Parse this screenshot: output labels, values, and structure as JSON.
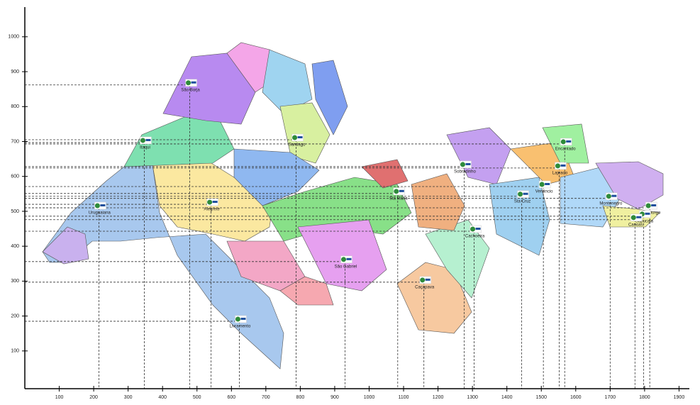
{
  "chart_data": {
    "type": "scatter",
    "xlim": [
      0,
      1930
    ],
    "ylim": [
      0,
      1085
    ],
    "xticks": [
      100,
      200,
      300,
      400,
      500,
      600,
      700,
      800,
      900,
      1000,
      1100,
      1200,
      1300,
      1400,
      1500,
      1600,
      1700,
      1800,
      1900
    ],
    "yticks": [
      100,
      200,
      300,
      400,
      500,
      600,
      700,
      800,
      900,
      1000
    ],
    "points": [
      {
        "label": "Uruguaiana",
        "x": 215,
        "y": 510
      },
      {
        "label": "Alegrete",
        "x": 541,
        "y": 520
      },
      {
        "label": "São Borja",
        "x": 479,
        "y": 862
      },
      {
        "label": "Itaqui",
        "x": 347,
        "y": 697
      },
      {
        "label": "Santiago",
        "x": 788,
        "y": 705
      },
      {
        "label": "Livramento",
        "x": 623,
        "y": 185
      },
      {
        "label": "São Gabriel",
        "x": 930,
        "y": 356
      },
      {
        "label": "Sta Maria",
        "x": 1083,
        "y": 551
      },
      {
        "label": "Caçapava",
        "x": 1159,
        "y": 297
      },
      {
        "label": "Cachoeira",
        "x": 1305,
        "y": 443
      },
      {
        "label": "Sobradinho",
        "x": 1276,
        "y": 628
      },
      {
        "label": "Sta Cruz",
        "x": 1443,
        "y": 543
      },
      {
        "label": "Venâncio",
        "x": 1506,
        "y": 571
      },
      {
        "label": "Lajeado",
        "x": 1552,
        "y": 624
      },
      {
        "label": "Encantado",
        "x": 1568,
        "y": 693
      },
      {
        "label": "Montenegro",
        "x": 1700,
        "y": 537
      },
      {
        "label": "Hamburgo",
        "x": 1815,
        "y": 510
      },
      {
        "label": "Sapucaia",
        "x": 1797,
        "y": 486
      },
      {
        "label": "Canoas",
        "x": 1772,
        "y": 476
      }
    ]
  }
}
